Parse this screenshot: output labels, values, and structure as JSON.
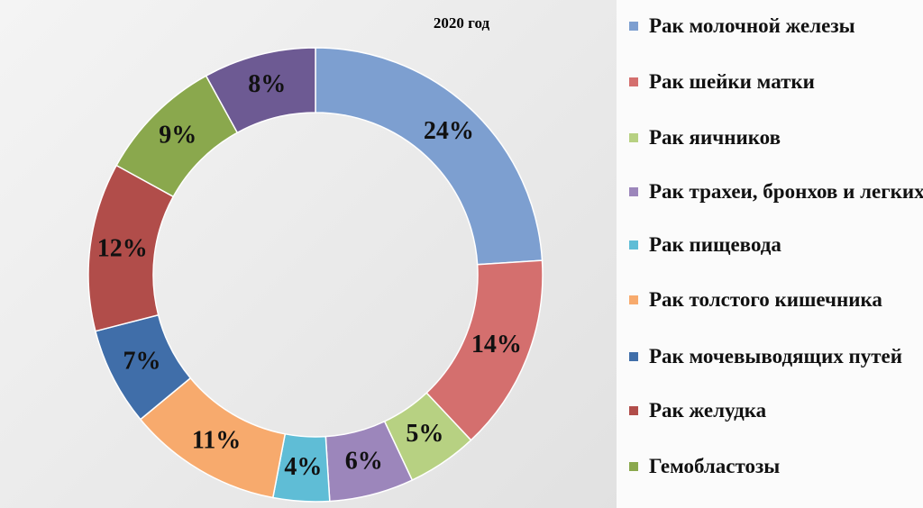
{
  "chart_data": {
    "type": "donut",
    "title": "2020 год",
    "categories": [
      "Рак молочной железы",
      "Рак шейки матки",
      "Рак яичников",
      "Рак трахеи, бронхов и легких",
      "Рак пищевода",
      "Рак толстого кишечника",
      "Рак мочевыводящих путей",
      "Рак желудка",
      "Гемобластозы",
      null
    ],
    "values": [
      24,
      14,
      5,
      6,
      4,
      11,
      7,
      12,
      9,
      8
    ],
    "value_labels": [
      "24%",
      "14%",
      "5%",
      "6%",
      "4%",
      "11%",
      "7%",
      "12%",
      "9%",
      "8%"
    ],
    "colors": [
      "#7d9fd0",
      "#d46f6e",
      "#b7d182",
      "#9c86bb",
      "#5fbdd6",
      "#f7aa6d",
      "#406ea9",
      "#b14d4a",
      "#8aa84d",
      "#6d5a93"
    ],
    "legend": "right"
  }
}
